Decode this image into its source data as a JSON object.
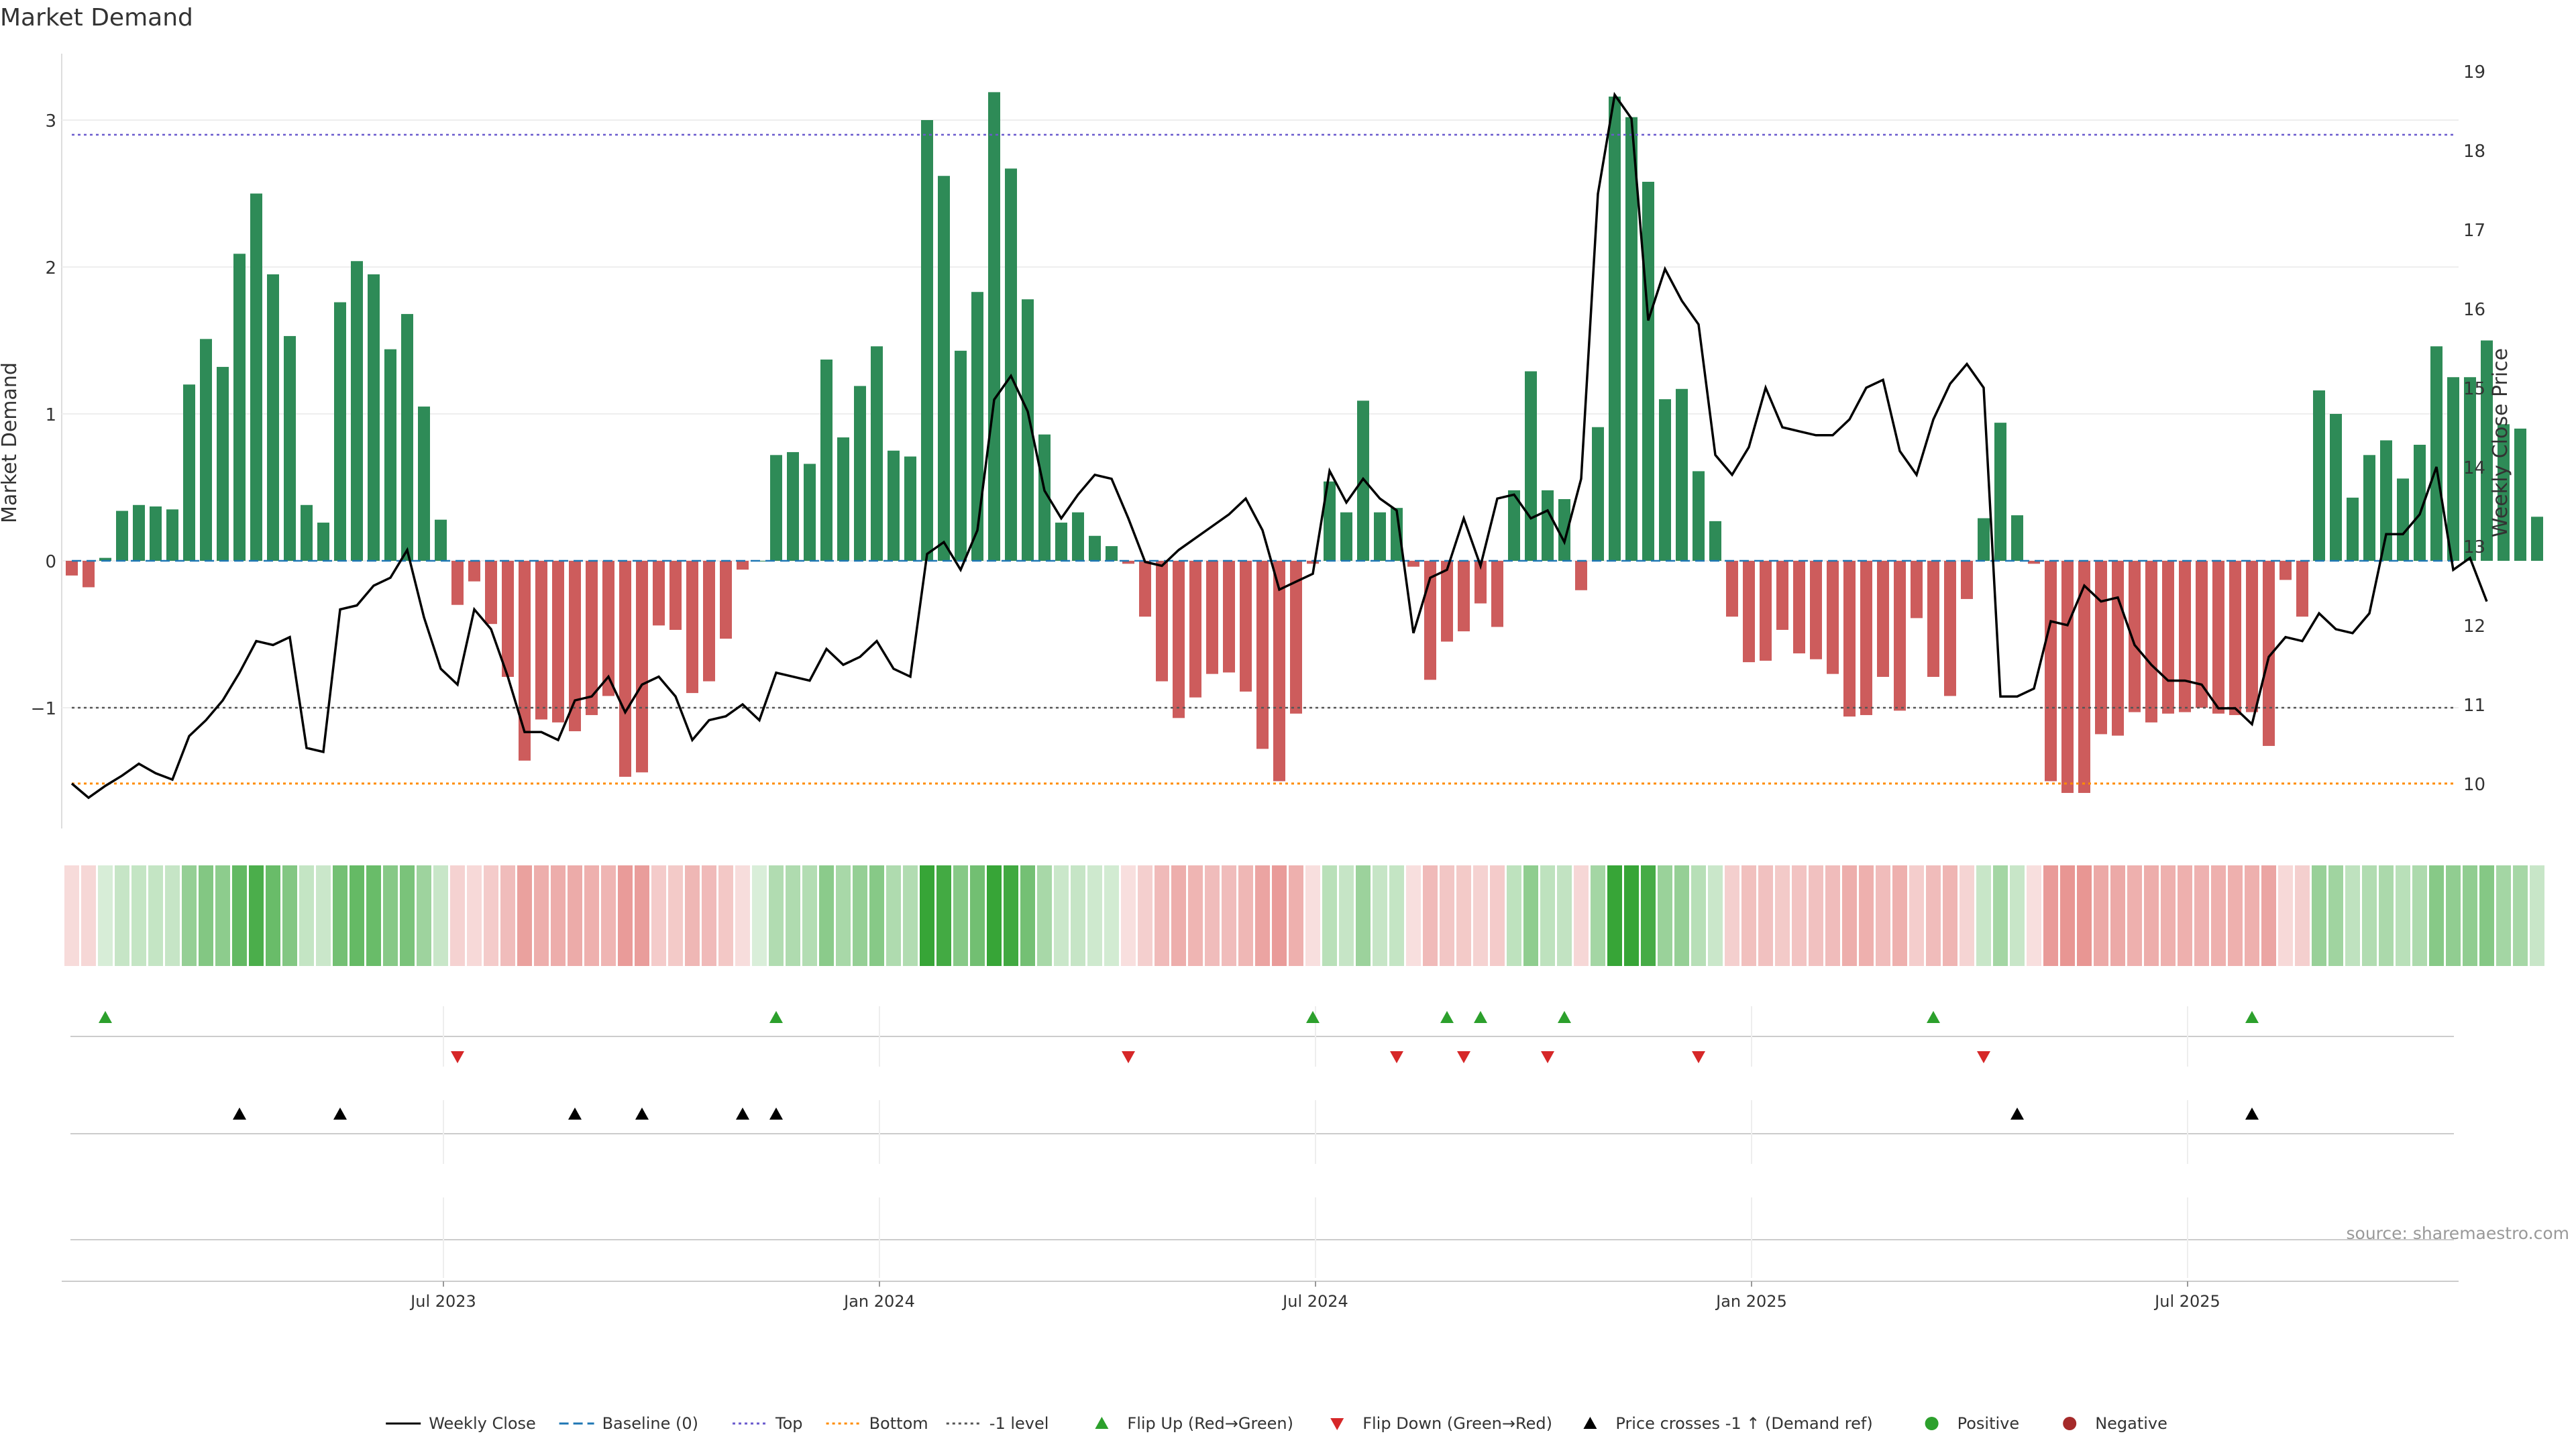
{
  "title": "Market Demand",
  "source": "source: sharemaestro.com",
  "colors": {
    "positive": "#2e8b57",
    "negative": "#cd5c5c",
    "price_line": "#000000",
    "baseline": "#1f77b4",
    "top": "#6a5acd",
    "bottom": "#ff8c00",
    "minus_one": "#555555",
    "flip_up": "#2ca02c",
    "flip_down": "#d62728",
    "cross": "#000000",
    "heat_pos": "#2ca02c",
    "heat_neg": "#d9534f"
  },
  "chart_data": {
    "type": "bar",
    "title": "Market Demand",
    "ylabel": "Market Demand",
    "y2label": "Weekly Close Price",
    "ylim": [
      -1.85,
      3.45
    ],
    "y2lim": [
      9.4,
      19.3
    ],
    "yticks": [
      "3",
      "2",
      "1",
      "0",
      "−1"
    ],
    "y2ticks": [
      "19",
      "18",
      "17",
      "16",
      "15",
      "14",
      "13",
      "12",
      "11",
      "10"
    ],
    "xticks": [
      "Jul 2023",
      "Jan 2024",
      "Jul 2024",
      "Jan 2025",
      "Jul 2025"
    ],
    "xtick_weeks": [
      22,
      48,
      74,
      100,
      126
    ],
    "top_level": 2.9,
    "bottom_level": -1.5,
    "minus_one_level": -1.0,
    "demand": [
      -0.1,
      -0.18,
      0.02,
      0.34,
      0.38,
      0.37,
      0.35,
      1.2,
      1.51,
      1.32,
      2.09,
      2.5,
      1.95,
      1.53,
      0.38,
      0.26,
      1.76,
      2.04,
      1.95,
      1.44,
      1.68,
      1.05,
      0.28,
      -0.3,
      -0.14,
      -0.43,
      -0.79,
      -1.36,
      -1.08,
      -1.1,
      -1.16,
      -1.05,
      -0.92,
      -1.47,
      -1.44,
      -0.44,
      -0.47,
      -0.9,
      -0.82,
      -0.53,
      -0.06,
      0.0,
      0.72,
      0.74,
      0.66,
      1.37,
      0.84,
      1.19,
      1.46,
      0.75,
      0.71,
      3.0,
      2.62,
      1.43,
      1.83,
      3.19,
      2.67,
      1.78,
      0.86,
      0.26,
      0.33,
      0.17,
      0.1,
      -0.02,
      -0.38,
      -0.82,
      -1.07,
      -0.93,
      -0.77,
      -0.76,
      -0.89,
      -1.28,
      -1.5,
      -1.04,
      -0.02,
      0.54,
      0.33,
      1.09,
      0.33,
      0.36,
      -0.04,
      -0.81,
      -0.55,
      -0.48,
      -0.29,
      -0.45,
      0.48,
      1.29,
      0.48,
      0.42,
      -0.2,
      0.91,
      3.16,
      3.02,
      2.58,
      1.1,
      1.17,
      0.61,
      0.27,
      -0.38,
      -0.69,
      -0.68,
      -0.47,
      -0.63,
      -0.67,
      -0.77,
      -1.06,
      -1.05,
      -0.79,
      -1.02,
      -0.39,
      -0.79,
      -0.92,
      -0.26,
      0.29,
      0.94,
      0.31,
      -0.02,
      -1.5,
      -1.58,
      -1.58,
      -1.18,
      -1.19,
      -1.03,
      -1.1,
      -1.04,
      -1.03,
      -1.0,
      -1.04,
      -1.05,
      -1.03,
      -1.26,
      -0.13,
      -0.38,
      1.16,
      1.0,
      0.43,
      0.72,
      0.82,
      0.56,
      0.79,
      1.46,
      1.25,
      1.25,
      1.5,
      0.93,
      0.9,
      0.3
    ],
    "weekly_close": [
      10.0,
      9.82,
      9.97,
      10.1,
      10.25,
      10.13,
      10.05,
      10.6,
      10.8,
      11.05,
      11.4,
      11.8,
      11.75,
      11.85,
      10.45,
      10.4,
      12.2,
      12.25,
      12.5,
      12.6,
      12.95,
      12.1,
      11.45,
      11.25,
      12.2,
      11.95,
      11.35,
      10.65,
      10.65,
      10.55,
      11.05,
      11.1,
      11.35,
      10.9,
      11.25,
      11.35,
      11.1,
      10.55,
      10.8,
      10.85,
      11.0,
      10.8,
      11.4,
      11.35,
      11.3,
      11.7,
      11.5,
      11.6,
      11.8,
      11.45,
      11.35,
      12.9,
      13.05,
      12.7,
      13.2,
      14.85,
      15.15,
      14.7,
      13.7,
      13.35,
      13.65,
      13.9,
      13.85,
      13.35,
      12.8,
      12.75,
      12.95,
      13.1,
      13.25,
      13.4,
      13.6,
      13.2,
      12.45,
      12.55,
      12.65,
      13.95,
      13.55,
      13.85,
      13.6,
      13.45,
      11.9,
      12.6,
      12.7,
      13.35,
      12.75,
      13.6,
      13.65,
      13.35,
      13.45,
      13.05,
      13.85,
      17.45,
      18.7,
      18.4,
      15.85,
      16.5,
      16.1,
      15.8,
      14.15,
      13.9,
      14.25,
      15.0,
      14.5,
      14.45,
      14.4,
      14.4,
      14.6,
      15.0,
      15.1,
      14.2,
      13.9,
      14.6,
      15.05,
      15.3,
      15.0,
      11.1,
      11.1,
      11.2,
      12.05,
      12.0,
      12.5,
      12.3,
      12.35,
      11.75,
      11.5,
      11.3,
      11.3,
      11.25,
      10.95,
      10.95,
      10.75,
      11.6,
      11.85,
      11.8,
      12.15,
      11.95,
      11.9,
      12.15,
      13.15,
      13.15,
      13.4,
      14.0,
      12.7,
      12.85,
      12.3
    ],
    "flip_up_weeks": [
      2,
      42,
      74,
      82,
      84,
      89,
      111,
      130
    ],
    "flip_down_weeks": [
      23,
      63,
      79,
      83,
      88,
      97,
      114
    ],
    "cross_weeks": [
      10,
      16,
      30,
      34,
      40,
      42,
      116,
      130
    ]
  },
  "legend": [
    {
      "label": "Weekly Close",
      "kind": "line-solid",
      "color": "#000000"
    },
    {
      "label": "Baseline (0)",
      "kind": "line-dash",
      "color": "#1f77b4"
    },
    {
      "label": "Top",
      "kind": "line-dot",
      "color": "#6a5acd"
    },
    {
      "label": "Bottom",
      "kind": "line-dot",
      "color": "#ff8c00"
    },
    {
      "label": "-1 level",
      "kind": "line-dot",
      "color": "#555555"
    },
    {
      "label": "Flip Up (Red→Green)",
      "kind": "tri-up",
      "color": "#2ca02c"
    },
    {
      "label": "Flip Down (Green→Red)",
      "kind": "tri-down",
      "color": "#d62728"
    },
    {
      "label": "Price crosses -1 ↑ (Demand ref)",
      "kind": "tri-up",
      "color": "#000000"
    },
    {
      "label": "Positive",
      "kind": "dot",
      "color": "#2ca02c"
    },
    {
      "label": "Negative",
      "kind": "dot",
      "color": "#a52a2a"
    }
  ]
}
